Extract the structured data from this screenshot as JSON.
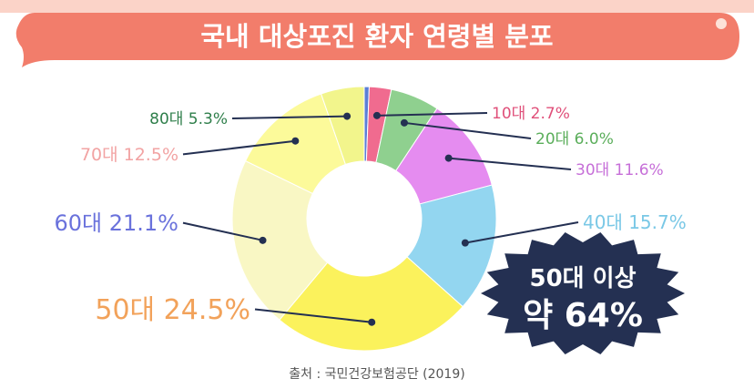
{
  "title": "국내 대상포진 환자 연령별 분포",
  "source": "출처 : 국민건강보험공단 (2019)",
  "callout": {
    "line1": "50대 이상",
    "line2": "약 64%"
  },
  "colors": {
    "banner": "#f27d6b",
    "banner_top": "#fbd3c8",
    "callout_bg": "#243052"
  },
  "chart_data": {
    "type": "pie",
    "title": "국내 대상포진 환자 연령별 분포",
    "categories": [
      "0대",
      "10대",
      "20대",
      "30대",
      "40대",
      "50대",
      "60대",
      "70대",
      "80대"
    ],
    "values": [
      0.6,
      2.7,
      6.0,
      11.6,
      15.7,
      24.5,
      21.1,
      12.5,
      5.3
    ],
    "labels": [
      "",
      "10대 2.7%",
      "20대 6.0%",
      "30대 11.6%",
      "40대 15.7%",
      "50대 24.5%",
      "60대 21.1%",
      "70대 12.5%",
      "80대 5.3%"
    ],
    "slice_colors": [
      "#5b7fd6",
      "#f06b8f",
      "#8fd08f",
      "#e58cf0",
      "#93d6f0",
      "#fbf25c",
      "#f9f7c4",
      "#fcfa9a",
      "#f2f58c"
    ],
    "label_colors": [
      "#5b7fd6",
      "#e0507a",
      "#5bae5b",
      "#c66fd8",
      "#7ac8e6",
      "#f2a25a",
      "#6a72dc",
      "#f2a3a3",
      "#2f7f4b"
    ],
    "donut": true,
    "legend": "none"
  }
}
